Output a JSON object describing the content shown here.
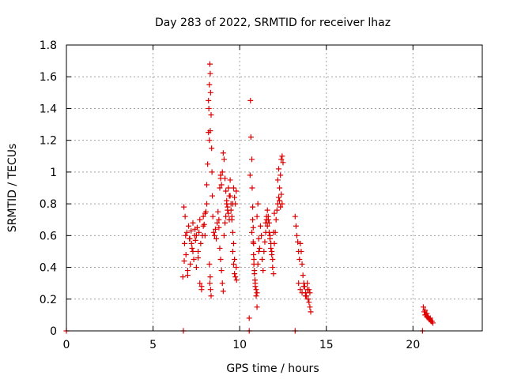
{
  "chart_data": {
    "type": "scatter",
    "title": "Day 283 of 2022, SRMTID for receiver lhaz",
    "xlabel": "GPS time / hours",
    "ylabel": "SRMTID / TECUs",
    "xlim": [
      0,
      24
    ],
    "ylim": [
      0,
      1.8
    ],
    "xticks": [
      0,
      5,
      10,
      15,
      20
    ],
    "yticks": [
      0,
      0.2,
      0.4,
      0.6,
      0.8,
      1.0,
      1.2,
      1.4,
      1.6,
      1.8
    ],
    "xtick_labels": [
      "0",
      "5",
      "10",
      "15",
      "20"
    ],
    "ytick_labels": [
      "0",
      "0.2",
      "0.4",
      "0.6",
      "0.8",
      "1",
      "1.2",
      "1.4",
      "1.6",
      "1.8"
    ],
    "grid": true,
    "marker": "+",
    "color": "#dd0000",
    "series": [
      {
        "name": "SRMTID",
        "x": [
          0.0,
          6.75,
          10.55,
          13.2,
          20.55,
          6.72,
          6.78,
          6.82,
          6.85,
          6.9,
          6.95,
          7.0,
          7.05,
          7.1,
          7.15,
          7.2,
          7.25,
          7.3,
          7.35,
          7.4,
          7.45,
          7.5,
          7.55,
          7.6,
          7.65,
          7.7,
          7.75,
          7.8,
          7.85,
          7.9,
          7.95,
          8.0,
          8.05,
          8.1,
          6.8,
          6.88,
          7.0,
          7.12,
          7.22,
          7.3,
          7.42,
          7.5,
          7.6,
          7.7,
          7.8,
          7.9,
          8.0,
          8.1,
          8.15,
          8.2,
          8.22,
          8.25,
          8.28,
          8.3,
          8.32,
          8.35,
          8.38,
          8.4,
          8.42,
          8.45,
          8.5,
          8.55,
          8.6,
          8.65,
          8.7,
          8.75,
          8.8,
          8.85,
          8.9,
          8.25,
          8.28,
          8.3,
          8.32,
          8.35,
          8.3,
          8.25,
          8.2,
          8.8,
          8.85,
          8.9,
          8.95,
          9.0,
          9.05,
          9.1,
          9.15,
          9.2,
          9.25,
          9.3,
          9.35,
          9.4,
          9.45,
          9.5,
          9.55,
          9.6,
          9.65,
          9.7,
          8.9,
          8.95,
          9.0,
          9.05,
          9.1,
          9.15,
          9.2,
          9.25,
          9.3,
          9.35,
          9.4,
          9.45,
          9.5,
          9.55,
          9.6,
          9.65,
          9.7,
          9.75,
          9.8,
          9.6,
          9.65,
          9.7,
          9.75,
          9.8,
          9.82,
          10.55,
          10.6,
          10.62,
          10.65,
          10.7,
          10.72,
          10.75,
          10.78,
          10.8,
          10.82,
          10.85,
          10.88,
          10.9,
          10.95,
          11.0,
          11.05,
          11.1,
          10.7,
          10.75,
          10.78,
          10.8,
          10.82,
          10.85,
          10.9,
          10.95,
          11.0,
          11.0,
          11.05,
          11.1,
          11.15,
          11.2,
          11.25,
          11.3,
          11.35,
          11.4,
          11.45,
          11.5,
          11.55,
          11.6,
          11.65,
          11.7,
          11.75,
          11.8,
          11.85,
          11.9,
          11.95,
          12.0,
          11.5,
          11.55,
          11.6,
          11.65,
          11.7,
          11.75,
          11.8,
          11.85,
          11.9,
          11.95,
          12.0,
          12.05,
          12.1,
          12.15,
          12.2,
          12.25,
          12.3,
          12.35,
          12.4,
          12.45,
          12.2,
          12.25,
          12.3,
          12.35,
          12.4,
          12.45,
          12.5,
          13.2,
          13.25,
          13.3,
          13.35,
          13.4,
          13.45,
          13.5,
          13.55,
          13.6,
          13.65,
          13.7,
          13.75,
          13.8,
          13.85,
          13.9,
          13.95,
          14.0,
          14.05,
          14.1,
          13.4,
          13.5,
          13.6,
          13.7,
          13.8,
          13.9,
          14.0,
          14.05,
          20.6,
          20.65,
          20.7,
          20.75,
          20.8,
          20.85,
          20.9,
          20.95,
          21.0,
          21.05,
          21.1,
          21.15,
          20.7,
          20.8,
          20.9,
          21.0
        ],
        "y": [
          0.0,
          0.0,
          0.0,
          0.0,
          0.0,
          0.34,
          0.78,
          0.55,
          0.72,
          0.48,
          0.62,
          0.35,
          0.66,
          0.58,
          0.42,
          0.63,
          0.52,
          0.68,
          0.45,
          0.6,
          0.57,
          0.4,
          0.65,
          0.5,
          0.62,
          0.7,
          0.55,
          0.28,
          0.6,
          0.72,
          0.67,
          0.6,
          0.75,
          0.8,
          0.44,
          0.6,
          0.38,
          0.58,
          0.55,
          0.5,
          0.64,
          0.6,
          0.46,
          0.3,
          0.26,
          0.66,
          0.74,
          0.92,
          1.05,
          1.25,
          1.4,
          1.55,
          1.68,
          1.62,
          1.5,
          1.36,
          1.15,
          1.0,
          0.85,
          0.72,
          0.62,
          0.6,
          0.64,
          0.58,
          0.68,
          0.75,
          0.7,
          0.9,
          0.96,
          0.42,
          0.3,
          0.34,
          0.26,
          0.22,
          1.26,
          1.2,
          1.45,
          0.65,
          0.52,
          0.45,
          0.38,
          0.3,
          0.25,
          0.6,
          0.68,
          0.72,
          0.8,
          0.76,
          0.9,
          0.85,
          0.95,
          0.8,
          0.7,
          0.62,
          0.55,
          0.45,
          0.98,
          0.92,
          1.0,
          1.12,
          1.08,
          0.96,
          0.88,
          0.82,
          0.78,
          0.74,
          0.7,
          0.85,
          0.76,
          0.72,
          0.8,
          0.9,
          0.84,
          0.8,
          0.88,
          0.5,
          0.42,
          0.36,
          0.34,
          0.4,
          0.32,
          0.08,
          0.98,
          1.45,
          1.22,
          1.08,
          0.9,
          0.78,
          0.65,
          0.55,
          0.45,
          0.38,
          0.32,
          0.28,
          0.22,
          0.15,
          0.42,
          0.5,
          0.62,
          0.7,
          0.56,
          0.48,
          0.42,
          0.36,
          0.3,
          0.26,
          0.24,
          0.72,
          0.8,
          0.58,
          0.52,
          0.66,
          0.6,
          0.45,
          0.38,
          0.5,
          0.56,
          0.62,
          0.7,
          0.66,
          0.72,
          0.68,
          0.6,
          0.55,
          0.5,
          0.45,
          0.62,
          0.74,
          0.68,
          0.72,
          0.76,
          0.7,
          0.62,
          0.58,
          0.52,
          0.48,
          0.4,
          0.36,
          0.55,
          0.62,
          0.7,
          0.76,
          0.8,
          0.84,
          0.82,
          0.78,
          0.86,
          0.8,
          0.95,
          1.02,
          0.9,
          0.98,
          1.08,
          1.1,
          1.06,
          0.72,
          0.66,
          0.6,
          0.56,
          0.5,
          0.45,
          0.55,
          0.5,
          0.42,
          0.35,
          0.3,
          0.28,
          0.24,
          0.22,
          0.26,
          0.2,
          0.18,
          0.15,
          0.12,
          0.3,
          0.26,
          0.24,
          0.28,
          0.22,
          0.3,
          0.26,
          0.24,
          0.15,
          0.12,
          0.13,
          0.1,
          0.11,
          0.09,
          0.08,
          0.07,
          0.08,
          0.06,
          0.06,
          0.05,
          0.1,
          0.09,
          0.08,
          0.07
        ]
      }
    ]
  }
}
